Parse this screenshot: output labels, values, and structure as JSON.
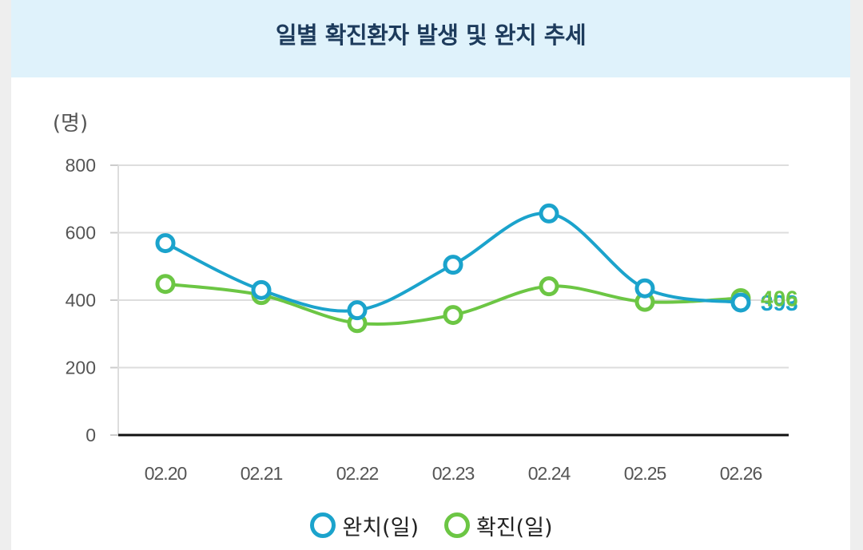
{
  "header": {
    "title": "일별 확진환자 발생 및 완치 추세"
  },
  "chart_data": {
    "type": "line",
    "unit_label": "(명)",
    "categories": [
      "02.20",
      "02.21",
      "02.22",
      "02.23",
      "02.24",
      "02.25",
      "02.26"
    ],
    "y_ticks": [
      "0",
      "200",
      "400",
      "600",
      "800"
    ],
    "ylim": [
      0,
      800
    ],
    "grid": true,
    "legend_position": "bottom",
    "series": [
      {
        "name": "완치(일)",
        "color": "#1ba3cc",
        "values": [
          569,
          430,
          370,
          505,
          657,
          435,
          393
        ],
        "end_label": "393"
      },
      {
        "name": "확진(일)",
        "color": "#6cc644",
        "values": [
          448,
          415,
          332,
          356,
          441,
          395,
          406
        ],
        "end_label": "406"
      }
    ]
  }
}
